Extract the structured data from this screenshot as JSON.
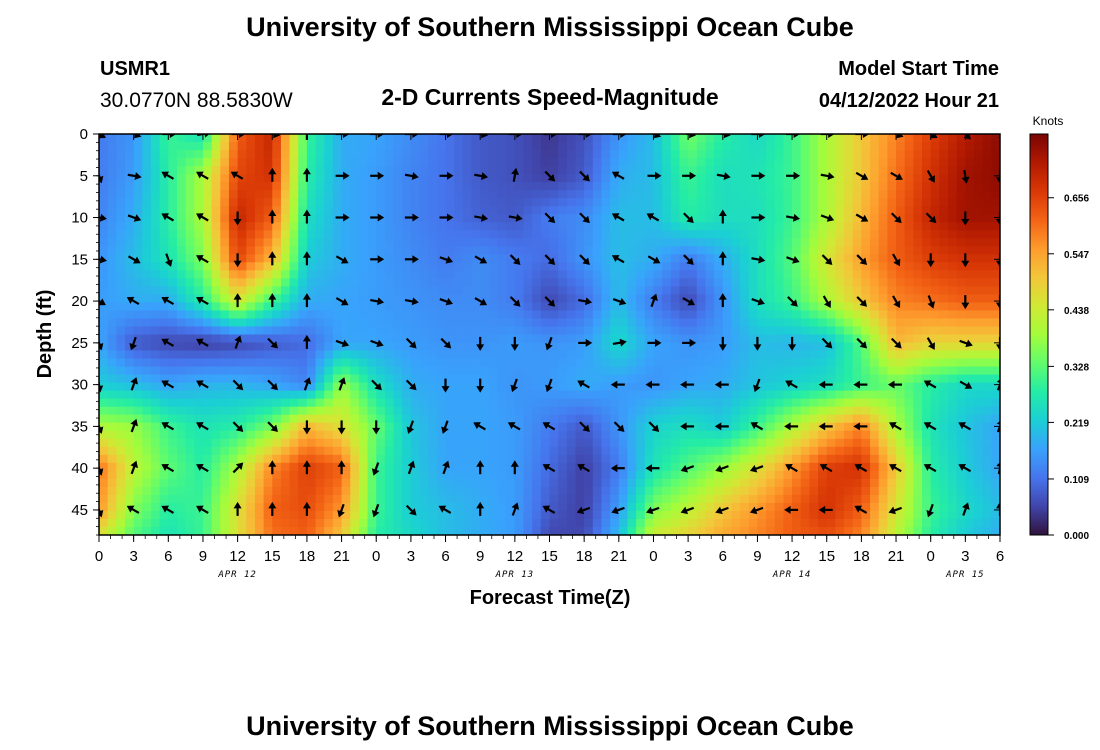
{
  "header": {
    "title": "University of Southern Mississippi Ocean Cube",
    "station": "USMR1",
    "location": "30.0770N  88.5830W",
    "subtitle": "2-D Currents Speed-Magnitude",
    "model_start_label": "Model Start Time",
    "model_start_value": "04/12/2022 Hour 21"
  },
  "footer": {
    "title": "University of Southern Mississippi Ocean Cube"
  },
  "chart_data": {
    "type": "heatmap",
    "title": "2-D Currents Speed-Magnitude",
    "xlabel": "Forecast Time(Z)",
    "ylabel": "Depth (ft)",
    "x_tick_labels": [
      "0",
      "3",
      "6",
      "9",
      "12",
      "15",
      "18",
      "21",
      "0",
      "3",
      "6",
      "9",
      "12",
      "15",
      "18",
      "21",
      "0",
      "3",
      "6",
      "9",
      "12",
      "15",
      "18",
      "21",
      "0",
      "3",
      "6"
    ],
    "x_range_hours": [
      0,
      78
    ],
    "date_labels": [
      {
        "hour": 12,
        "text": "APR 12"
      },
      {
        "hour": 36,
        "text": "APR 13"
      },
      {
        "hour": 60,
        "text": "APR 14"
      },
      {
        "hour": 75,
        "text": "APR 15"
      }
    ],
    "y_tick_labels": [
      "0",
      "5",
      "10",
      "15",
      "20",
      "25",
      "30",
      "35",
      "40",
      "45"
    ],
    "y_range_ft": [
      0,
      48
    ],
    "colorbar": {
      "label": "Knots",
      "ticks": [
        "0.656",
        "0.547",
        "0.438",
        "0.328",
        "0.219",
        "0.109",
        "0.000"
      ],
      "range": [
        0,
        0.78
      ],
      "colors": [
        "#30123b",
        "#4145ab",
        "#4675ed",
        "#39a2fc",
        "#1bcfd4",
        "#24eca6",
        "#61fc6c",
        "#a4fc3b",
        "#d1e834",
        "#f3c63a",
        "#fe9b2d",
        "#f36315",
        "#d93806",
        "#b11901",
        "#7a0402"
      ]
    },
    "speed_grid": {
      "x_hours": [
        0,
        3,
        6,
        9,
        12,
        15,
        18,
        21,
        24,
        27,
        30,
        33,
        36,
        39,
        42,
        45,
        48,
        51,
        54,
        57,
        60,
        63,
        66,
        69,
        72,
        75,
        78
      ],
      "y_depths_ft": [
        0,
        5,
        10,
        15,
        20,
        25,
        30,
        35,
        40,
        45,
        48
      ],
      "values": [
        [
          0.12,
          0.15,
          0.3,
          0.25,
          0.62,
          0.7,
          0.3,
          0.18,
          0.17,
          0.14,
          0.11,
          0.08,
          0.07,
          0.04,
          0.07,
          0.15,
          0.2,
          0.35,
          0.28,
          0.24,
          0.3,
          0.4,
          0.5,
          0.58,
          0.66,
          0.72,
          0.76
        ],
        [
          0.12,
          0.16,
          0.28,
          0.4,
          0.65,
          0.68,
          0.28,
          0.18,
          0.16,
          0.13,
          0.11,
          0.08,
          0.07,
          0.05,
          0.08,
          0.18,
          0.2,
          0.3,
          0.25,
          0.26,
          0.3,
          0.4,
          0.5,
          0.6,
          0.68,
          0.74,
          0.76
        ],
        [
          0.13,
          0.18,
          0.28,
          0.4,
          0.7,
          0.62,
          0.25,
          0.18,
          0.16,
          0.13,
          0.11,
          0.09,
          0.08,
          0.12,
          0.14,
          0.2,
          0.2,
          0.28,
          0.25,
          0.25,
          0.3,
          0.4,
          0.52,
          0.62,
          0.7,
          0.74,
          0.74
        ],
        [
          0.15,
          0.2,
          0.26,
          0.36,
          0.65,
          0.52,
          0.22,
          0.18,
          0.16,
          0.14,
          0.12,
          0.14,
          0.12,
          0.1,
          0.15,
          0.2,
          0.18,
          0.12,
          0.18,
          0.25,
          0.32,
          0.45,
          0.55,
          0.62,
          0.66,
          0.68,
          0.68
        ],
        [
          0.16,
          0.18,
          0.18,
          0.28,
          0.45,
          0.3,
          0.18,
          0.17,
          0.16,
          0.15,
          0.14,
          0.14,
          0.12,
          0.06,
          0.1,
          0.2,
          0.12,
          0.06,
          0.15,
          0.25,
          0.3,
          0.4,
          0.5,
          0.58,
          0.6,
          0.62,
          0.62
        ],
        [
          0.17,
          0.08,
          0.06,
          0.05,
          0.06,
          0.08,
          0.1,
          0.17,
          0.17,
          0.16,
          0.15,
          0.15,
          0.16,
          0.15,
          0.16,
          0.24,
          0.17,
          0.15,
          0.16,
          0.2,
          0.19,
          0.2,
          0.32,
          0.52,
          0.48,
          0.48,
          0.48
        ],
        [
          0.22,
          0.2,
          0.17,
          0.19,
          0.19,
          0.17,
          0.13,
          0.38,
          0.25,
          0.18,
          0.17,
          0.17,
          0.15,
          0.16,
          0.18,
          0.16,
          0.15,
          0.17,
          0.18,
          0.21,
          0.23,
          0.25,
          0.3,
          0.34,
          0.28,
          0.24,
          0.24
        ],
        [
          0.4,
          0.38,
          0.3,
          0.26,
          0.28,
          0.35,
          0.52,
          0.46,
          0.34,
          0.21,
          0.17,
          0.17,
          0.16,
          0.12,
          0.08,
          0.15,
          0.23,
          0.25,
          0.22,
          0.3,
          0.4,
          0.5,
          0.58,
          0.4,
          0.26,
          0.21,
          0.17
        ],
        [
          0.6,
          0.42,
          0.33,
          0.28,
          0.4,
          0.58,
          0.66,
          0.62,
          0.3,
          0.22,
          0.17,
          0.17,
          0.16,
          0.1,
          0.05,
          0.12,
          0.26,
          0.32,
          0.38,
          0.46,
          0.56,
          0.66,
          0.68,
          0.5,
          0.28,
          0.22,
          0.17
        ],
        [
          0.56,
          0.36,
          0.28,
          0.3,
          0.46,
          0.62,
          0.64,
          0.56,
          0.3,
          0.22,
          0.2,
          0.18,
          0.16,
          0.08,
          0.05,
          0.16,
          0.36,
          0.42,
          0.5,
          0.56,
          0.62,
          0.68,
          0.62,
          0.45,
          0.3,
          0.24,
          0.2
        ],
        [
          0.46,
          0.32,
          0.26,
          0.3,
          0.46,
          0.6,
          0.62,
          0.5,
          0.28,
          0.24,
          0.2,
          0.18,
          0.16,
          0.06,
          0.06,
          0.2,
          0.44,
          0.48,
          0.54,
          0.58,
          0.62,
          0.64,
          0.58,
          0.42,
          0.28,
          0.22,
          0.18
        ]
      ]
    },
    "vectors": {
      "note": "direction in degrees (0 = up / north, clockwise), one row per depth",
      "x_hours": [
        0,
        3,
        6,
        9,
        12,
        15,
        18,
        21,
        24,
        27,
        30,
        33,
        36,
        39,
        42,
        45,
        48,
        51,
        54,
        57,
        60,
        63,
        66,
        69,
        72,
        75,
        78
      ],
      "y_depths_ft": [
        0,
        5,
        10,
        15,
        20,
        25,
        30,
        35,
        40,
        45
      ],
      "directions_deg": [
        [
          120,
          110,
          90,
          80,
          90,
          100,
          0,
          90,
          90,
          90,
          90,
          100,
          90,
          90,
          90,
          90,
          110,
          100,
          100,
          90,
          90,
          90,
          90,
          110,
          120,
          135,
          135
        ],
        [
          160,
          100,
          300,
          300,
          300,
          0,
          0,
          90,
          90,
          100,
          90,
          100,
          10,
          135,
          135,
          300,
          90,
          90,
          100,
          90,
          90,
          100,
          120,
          120,
          150,
          170,
          180
        ],
        [
          100,
          110,
          300,
          300,
          180,
          0,
          0,
          90,
          90,
          90,
          90,
          100,
          100,
          135,
          135,
          300,
          300,
          135,
          0,
          90,
          100,
          110,
          120,
          135,
          135,
          180,
          180
        ],
        [
          100,
          120,
          160,
          300,
          180,
          0,
          0,
          120,
          90,
          90,
          110,
          120,
          135,
          135,
          135,
          300,
          120,
          135,
          0,
          100,
          110,
          135,
          135,
          150,
          180,
          180,
          180
        ],
        [
          120,
          300,
          300,
          300,
          0,
          0,
          0,
          120,
          100,
          100,
          110,
          120,
          135,
          135,
          100,
          110,
          20,
          120,
          0,
          110,
          135,
          150,
          135,
          150,
          160,
          180,
          180
        ],
        [
          160,
          200,
          300,
          300,
          20,
          135,
          0,
          110,
          110,
          135,
          135,
          180,
          180,
          200,
          90,
          80,
          90,
          90,
          180,
          180,
          180,
          135,
          135,
          135,
          150,
          110,
          180
        ],
        [
          170,
          20,
          300,
          300,
          135,
          135,
          20,
          20,
          135,
          135,
          180,
          180,
          200,
          200,
          300,
          270,
          270,
          270,
          270,
          200,
          300,
          270,
          270,
          270,
          300,
          120,
          20
        ],
        [
          160,
          20,
          300,
          300,
          135,
          135,
          180,
          180,
          180,
          200,
          200,
          300,
          300,
          300,
          135,
          135,
          135,
          270,
          270,
          300,
          270,
          270,
          270,
          300,
          300,
          300,
          20
        ],
        [
          160,
          20,
          300,
          300,
          45,
          0,
          0,
          0,
          200,
          20,
          20,
          0,
          0,
          300,
          300,
          270,
          270,
          250,
          250,
          250,
          300,
          300,
          300,
          300,
          300,
          300,
          10
        ],
        [
          160,
          300,
          300,
          300,
          0,
          0,
          0,
          200,
          200,
          135,
          300,
          0,
          20,
          300,
          250,
          250,
          250,
          250,
          250,
          250,
          270,
          270,
          300,
          250,
          200,
          20,
          0
        ]
      ]
    }
  }
}
